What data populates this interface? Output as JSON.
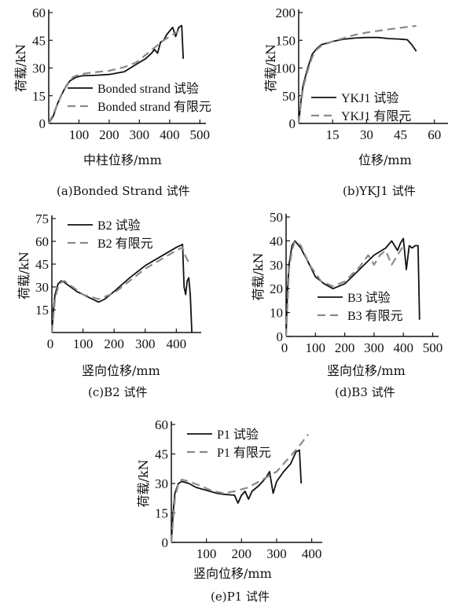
{
  "ylabel": "荷载/kN",
  "colors": {
    "experiment": "#111111",
    "fem": "#8a8a8a"
  },
  "chart_data": [
    {
      "type": "line",
      "caption": "(a)Bonded Strand 试件",
      "xlabel": "中柱位移/mm",
      "ylabel": "荷载/kN",
      "xlim": [
        0,
        520
      ],
      "ylim": [
        0,
        60
      ],
      "xticks": [
        100,
        200,
        300,
        400,
        500
      ],
      "yticks": [
        0,
        15,
        30,
        45,
        60
      ],
      "legend_position": "bottom-right",
      "series": [
        {
          "name": "Bonded strand 试验",
          "style": "solid",
          "x": [
            0,
            15,
            30,
            50,
            70,
            90,
            110,
            150,
            200,
            250,
            280,
            300,
            320,
            340,
            350,
            360,
            370,
            380,
            390,
            400,
            410,
            420,
            430,
            440,
            445
          ],
          "y": [
            0,
            4,
            11,
            18,
            23,
            25,
            25.8,
            26,
            26.5,
            28,
            31,
            33,
            35,
            38,
            40,
            38,
            44,
            45,
            48,
            50,
            52,
            47,
            52,
            53,
            35
          ]
        },
        {
          "name": "Bonded strand 有限元",
          "style": "dashed",
          "x": [
            0,
            20,
            40,
            60,
            80,
            100,
            140,
            200,
            250,
            290,
            320,
            350,
            380,
            410,
            430
          ],
          "y": [
            0,
            7,
            15,
            21,
            25,
            26.5,
            27.5,
            28.5,
            30.5,
            33,
            37,
            41,
            45,
            48,
            50
          ]
        }
      ]
    },
    {
      "type": "line",
      "caption": "(b)YKJ1 试件",
      "xlabel": "位移/mm",
      "ylabel": "荷载/kN",
      "xlim": [
        0,
        66
      ],
      "ylim": [
        0,
        200
      ],
      "xticks": [
        15,
        30,
        45,
        60
      ],
      "yticks": [
        0,
        50,
        100,
        150,
        200
      ],
      "legend_position": "right",
      "series": [
        {
          "name": "YKJ1 试验",
          "style": "solid",
          "x": [
            0,
            1,
            2,
            4,
            6,
            8,
            10,
            15,
            20,
            25,
            30,
            35,
            40,
            45,
            48,
            50,
            52
          ],
          "y": [
            0,
            40,
            70,
            100,
            125,
            135,
            142,
            148,
            152,
            154,
            155,
            155,
            153,
            152,
            151,
            142,
            130
          ]
        },
        {
          "name": "YKJ1 有限元",
          "style": "dashed",
          "x": [
            0,
            1,
            2,
            4,
            6,
            8,
            10,
            15,
            20,
            25,
            30,
            40,
            50,
            52
          ],
          "y": [
            0,
            35,
            65,
            95,
            120,
            133,
            140,
            148,
            154,
            160,
            164,
            170,
            175,
            176
          ]
        }
      ]
    },
    {
      "type": "line",
      "caption": "(c)B2 试件",
      "xlabel": "竖向位移/mm",
      "ylabel": "荷载/kN",
      "xlim": [
        0,
        480
      ],
      "ylim": [
        0,
        75
      ],
      "xticks": [
        100,
        200,
        300,
        400
      ],
      "yticks": [
        15,
        30,
        45,
        60,
        75
      ],
      "legend_position": "top-right",
      "series": [
        {
          "name": "B2 试验",
          "style": "solid",
          "x": [
            0,
            5,
            10,
            20,
            30,
            40,
            60,
            80,
            100,
            130,
            150,
            170,
            200,
            250,
            300,
            350,
            400,
            420,
            425,
            430,
            435,
            440,
            445,
            450
          ],
          "y": [
            0,
            15,
            25,
            32,
            34,
            33,
            30,
            27,
            25,
            22,
            20,
            22,
            27,
            36,
            44,
            50,
            56,
            58,
            30,
            25,
            34,
            36,
            25,
            0
          ]
        },
        {
          "name": "B2 有限元",
          "style": "dashed",
          "x": [
            0,
            10,
            20,
            30,
            40,
            60,
            100,
            150,
            200,
            250,
            300,
            350,
            400,
            420,
            430,
            440
          ],
          "y": [
            0,
            22,
            30,
            33,
            34,
            31,
            25,
            22,
            26,
            34,
            42,
            48,
            54,
            56,
            50,
            46
          ]
        }
      ]
    },
    {
      "type": "line",
      "caption": "(d)B3 试件",
      "xlabel": "竖向位移/mm",
      "ylabel": "荷载/kN",
      "xlim": [
        0,
        520
      ],
      "ylim": [
        0,
        50
      ],
      "xticks": [
        100,
        200,
        300,
        400,
        500
      ],
      "yticks": [
        0,
        10,
        20,
        30,
        40,
        50
      ],
      "legend_position": "bottom-right",
      "series": [
        {
          "name": "B3 试验",
          "style": "solid",
          "x": [
            0,
            5,
            10,
            20,
            30,
            50,
            80,
            100,
            130,
            160,
            200,
            250,
            300,
            340,
            360,
            380,
            390,
            400,
            410,
            420,
            430,
            440,
            450,
            455
          ],
          "y": [
            0,
            20,
            30,
            38,
            40,
            37,
            30,
            25,
            22,
            20,
            22,
            28,
            34,
            37,
            40,
            36,
            39,
            41,
            28,
            38,
            37,
            38,
            38,
            7
          ]
        },
        {
          "name": "B3 有限元",
          "style": "dashed",
          "x": [
            0,
            10,
            20,
            30,
            50,
            80,
            120,
            160,
            200,
            250,
            280,
            300,
            320,
            340,
            360,
            380,
            400
          ],
          "y": [
            0,
            28,
            36,
            40,
            38,
            30,
            23,
            21,
            23,
            29,
            34,
            30,
            34,
            36,
            30,
            34,
            38
          ]
        }
      ]
    },
    {
      "type": "line",
      "caption": "(e)P1 试件",
      "xlabel": "竖向位移/mm",
      "ylabel": "荷载/kN",
      "xlim": [
        0,
        430
      ],
      "ylim": [
        0,
        60
      ],
      "xticks": [
        100,
        200,
        300,
        400
      ],
      "yticks": [
        0,
        15,
        30,
        45,
        60
      ],
      "legend_position": "top",
      "series": [
        {
          "name": "P1 试验",
          "style": "solid",
          "x": [
            0,
            5,
            10,
            20,
            30,
            50,
            70,
            90,
            110,
            130,
            150,
            180,
            190,
            200,
            210,
            220,
            230,
            250,
            270,
            280,
            290,
            300,
            320,
            340,
            355,
            365,
            370
          ],
          "y": [
            0,
            15,
            25,
            30,
            31,
            30,
            28,
            27,
            26,
            25,
            24.5,
            24,
            20,
            24,
            26,
            22,
            26,
            29,
            33,
            36,
            25,
            31,
            36,
            40,
            46,
            47,
            30
          ]
        },
        {
          "name": "P1 有限元",
          "style": "dashed",
          "x": [
            0,
            10,
            20,
            30,
            50,
            80,
            120,
            150,
            180,
            220,
            260,
            300,
            330,
            360,
            390
          ],
          "y": [
            0,
            22,
            30,
            32,
            31,
            29,
            26,
            25,
            26,
            28,
            32,
            36,
            42,
            48,
            55
          ]
        }
      ]
    }
  ]
}
